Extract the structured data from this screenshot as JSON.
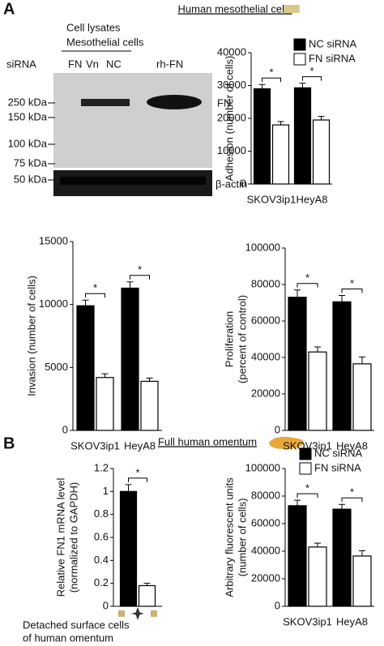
{
  "panels": {
    "a": "A",
    "b": "B"
  },
  "headers": {
    "a": "Human mesothelial cells",
    "b": "Full human omentum"
  },
  "blot": {
    "group": "Cell lysates",
    "subgroup": "Mesothelial cells",
    "row_label": "siRNA",
    "lanes": [
      "FN",
      "Vn",
      "NC",
      "rh-FN"
    ],
    "markers": [
      "250 kDa",
      "150 kDa",
      "100 kDa",
      "75 kDa",
      "50 kDa"
    ],
    "bands": [
      "FN",
      "β-actin"
    ]
  },
  "chart_data": [
    {
      "type": "bar",
      "y_label": [
        "Adhesion (number of cells)"
      ],
      "categories": [
        "SKOV3ip1",
        "HeyA8"
      ],
      "series": [
        {
          "name": "NC siRNA",
          "color": "#000000",
          "values": [
            29000,
            29300
          ],
          "errors": [
            1300,
            1400
          ]
        },
        {
          "name": "FN siRNA",
          "color": "#ffffff",
          "values": [
            18000,
            19500
          ],
          "errors": [
            1000,
            1100
          ]
        }
      ],
      "ylim": [
        0,
        40000
      ],
      "yticks": [
        0,
        10000,
        20000,
        30000,
        40000
      ],
      "legend": "top",
      "annotations": [
        "*",
        "*"
      ]
    },
    {
      "type": "bar",
      "y_label": [
        "Invasion (number of cells)"
      ],
      "categories": [
        "SKOV3ip1",
        "HeyA8"
      ],
      "series": [
        {
          "name": "NC siRNA",
          "color": "#000000",
          "values": [
            9900,
            11300
          ],
          "errors": [
            450,
            500
          ]
        },
        {
          "name": "FN siRNA",
          "color": "#ffffff",
          "values": [
            4200,
            3900
          ],
          "errors": [
            300,
            250
          ]
        }
      ],
      "ylim": [
        0,
        15000
      ],
      "yticks": [
        0,
        5000,
        10000,
        15000
      ],
      "annotations": [
        "*",
        "*"
      ]
    },
    {
      "type": "bar",
      "y_label": [
        "Proliferation",
        "(percent of control)"
      ],
      "categories": [
        "SKOV3ip1",
        "HeyA8"
      ],
      "series": [
        {
          "name": "NC siRNA",
          "color": "#000000",
          "values": [
            73000,
            70500
          ],
          "errors": [
            4000,
            3500
          ]
        },
        {
          "name": "FN siRNA",
          "color": "#ffffff",
          "values": [
            43000,
            36500
          ],
          "errors": [
            2800,
            3800
          ]
        }
      ],
      "ylim": [
        0,
        100000
      ],
      "yticks": [
        0,
        20000,
        40000,
        60000,
        80000,
        100000
      ],
      "annotations": [
        "*",
        "*"
      ]
    },
    {
      "type": "bar",
      "y_label": [
        "Relative FN1 mRNA level",
        "(normalized to GAPDH)"
      ],
      "x_label": [
        "Detached surface cells",
        "of human omentum"
      ],
      "categories": [
        null
      ],
      "series": [
        {
          "name": "NC siRNA",
          "color": "#000000",
          "values": [
            1.0
          ],
          "errors": [
            0.06
          ]
        },
        {
          "name": "FN siRNA",
          "color": "#ffffff",
          "values": [
            0.18
          ],
          "errors": [
            0.02
          ]
        }
      ],
      "ylim": [
        0,
        1.2
      ],
      "yticks": [
        0,
        0.2,
        0.4,
        0.6,
        0.8,
        1,
        1.2
      ],
      "annotations": [
        "*"
      ]
    },
    {
      "type": "bar",
      "y_label": [
        "Arbitrary fluorescent units",
        "(number of cells)"
      ],
      "categories": [
        "SKOV3ip1",
        "HeyA8"
      ],
      "series": [
        {
          "name": "NC siRNA",
          "color": "#000000",
          "values": [
            73000,
            70500
          ],
          "errors": [
            4000,
            3500
          ]
        },
        {
          "name": "FN siRNA",
          "color": "#ffffff",
          "values": [
            43000,
            36500
          ],
          "errors": [
            2800,
            3800
          ]
        }
      ],
      "ylim": [
        0,
        100000
      ],
      "yticks": [
        0,
        20000,
        40000,
        60000,
        80000,
        100000
      ],
      "legend": "top",
      "annotations": [
        "*",
        "*"
      ]
    }
  ]
}
